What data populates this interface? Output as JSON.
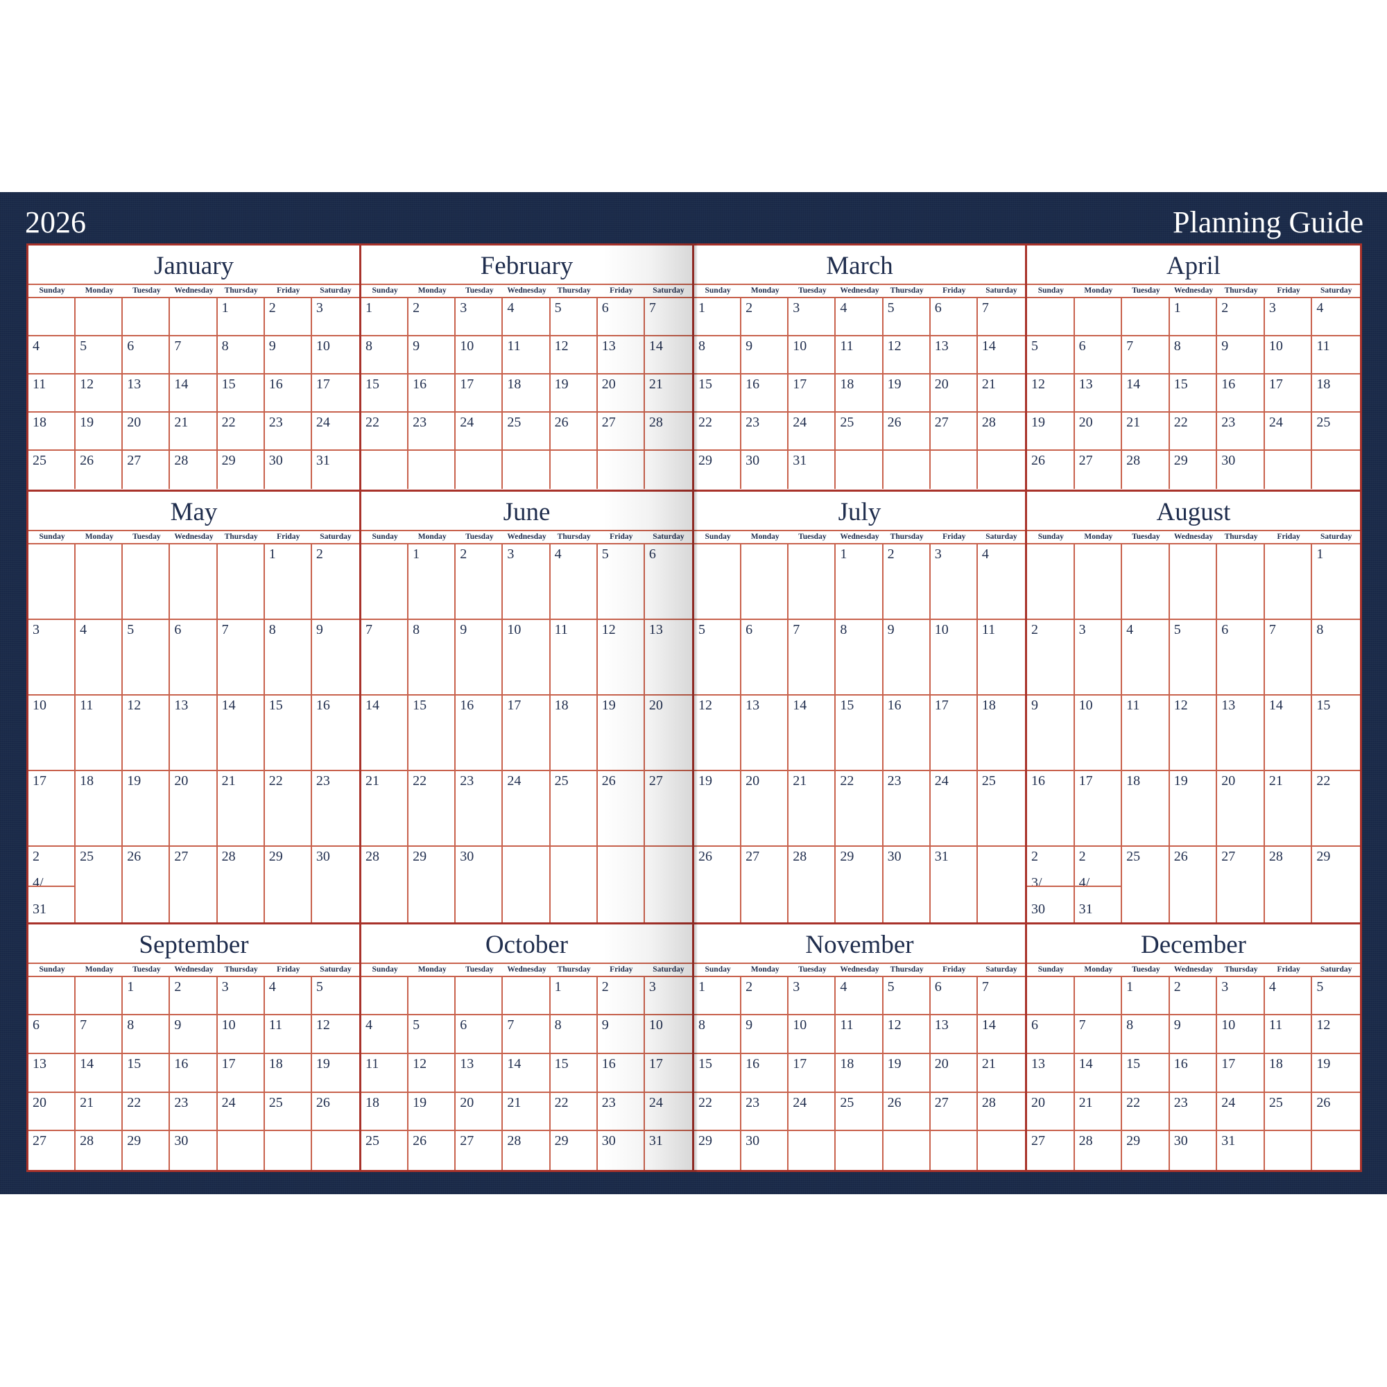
{
  "header": {
    "year": "2026",
    "title": "Planning Guide"
  },
  "colors": {
    "band": "#1b2b4a",
    "line": "#c8614c",
    "border": "#a8322a",
    "text": "#1f2d4d"
  },
  "weekdays": [
    "Sunday",
    "Monday",
    "Tuesday",
    "Wednesday",
    "Thursday",
    "Friday",
    "Saturday"
  ],
  "months": [
    {
      "name": "January",
      "weeks": [
        [
          "",
          "",
          "",
          "",
          "1",
          "2",
          "3"
        ],
        [
          "4",
          "5",
          "6",
          "7",
          "8",
          "9",
          "10"
        ],
        [
          "11",
          "12",
          "13",
          "14",
          "15",
          "16",
          "17"
        ],
        [
          "18",
          "19",
          "20",
          "21",
          "22",
          "23",
          "24"
        ],
        [
          "25",
          "26",
          "27",
          "28",
          "29",
          "30",
          "31"
        ]
      ]
    },
    {
      "name": "February",
      "weeks": [
        [
          "1",
          "2",
          "3",
          "4",
          "5",
          "6",
          "7"
        ],
        [
          "8",
          "9",
          "10",
          "11",
          "12",
          "13",
          "14"
        ],
        [
          "15",
          "16",
          "17",
          "18",
          "19",
          "20",
          "21"
        ],
        [
          "22",
          "23",
          "24",
          "25",
          "26",
          "27",
          "28"
        ],
        [
          "",
          "",
          "",
          "",
          "",
          "",
          ""
        ]
      ]
    },
    {
      "name": "March",
      "weeks": [
        [
          "1",
          "2",
          "3",
          "4",
          "5",
          "6",
          "7"
        ],
        [
          "8",
          "9",
          "10",
          "11",
          "12",
          "13",
          "14"
        ],
        [
          "15",
          "16",
          "17",
          "18",
          "19",
          "20",
          "21"
        ],
        [
          "22",
          "23",
          "24",
          "25",
          "26",
          "27",
          "28"
        ],
        [
          "29",
          "30",
          "31",
          "",
          "",
          "",
          ""
        ]
      ]
    },
    {
      "name": "April",
      "weeks": [
        [
          "",
          "",
          "",
          "1",
          "2",
          "3",
          "4"
        ],
        [
          "5",
          "6",
          "7",
          "8",
          "9",
          "10",
          "11"
        ],
        [
          "12",
          "13",
          "14",
          "15",
          "16",
          "17",
          "18"
        ],
        [
          "19",
          "20",
          "21",
          "22",
          "23",
          "24",
          "25"
        ],
        [
          "26",
          "27",
          "28",
          "29",
          "30",
          "",
          ""
        ]
      ]
    },
    {
      "name": "May",
      "weeks": [
        [
          "",
          "",
          "",
          "",
          "",
          "1",
          "2"
        ],
        [
          "3",
          "4",
          "5",
          "6",
          "7",
          "8",
          "9"
        ],
        [
          "10",
          "11",
          "12",
          "13",
          "14",
          "15",
          "16"
        ],
        [
          "17",
          "18",
          "19",
          "20",
          "21",
          "22",
          "23"
        ],
        [
          "24/31",
          "25",
          "26",
          "27",
          "28",
          "29",
          "30"
        ]
      ]
    },
    {
      "name": "June",
      "weeks": [
        [
          "",
          "1",
          "2",
          "3",
          "4",
          "5",
          "6"
        ],
        [
          "7",
          "8",
          "9",
          "10",
          "11",
          "12",
          "13"
        ],
        [
          "14",
          "15",
          "16",
          "17",
          "18",
          "19",
          "20"
        ],
        [
          "21",
          "22",
          "23",
          "24",
          "25",
          "26",
          "27"
        ],
        [
          "28",
          "29",
          "30",
          "",
          "",
          "",
          ""
        ]
      ]
    },
    {
      "name": "July",
      "weeks": [
        [
          "",
          "",
          "",
          "1",
          "2",
          "3",
          "4"
        ],
        [
          "5",
          "6",
          "7",
          "8",
          "9",
          "10",
          "11"
        ],
        [
          "12",
          "13",
          "14",
          "15",
          "16",
          "17",
          "18"
        ],
        [
          "19",
          "20",
          "21",
          "22",
          "23",
          "24",
          "25"
        ],
        [
          "26",
          "27",
          "28",
          "29",
          "30",
          "31",
          ""
        ]
      ]
    },
    {
      "name": "August",
      "weeks": [
        [
          "",
          "",
          "",
          "",
          "",
          "",
          "1"
        ],
        [
          "2",
          "3",
          "4",
          "5",
          "6",
          "7",
          "8"
        ],
        [
          "9",
          "10",
          "11",
          "12",
          "13",
          "14",
          "15"
        ],
        [
          "16",
          "17",
          "18",
          "19",
          "20",
          "21",
          "22"
        ],
        [
          "23/30",
          "24/31",
          "25",
          "26",
          "27",
          "28",
          "29"
        ]
      ]
    },
    {
      "name": "September",
      "weeks": [
        [
          "",
          "",
          "1",
          "2",
          "3",
          "4",
          "5"
        ],
        [
          "6",
          "7",
          "8",
          "9",
          "10",
          "11",
          "12"
        ],
        [
          "13",
          "14",
          "15",
          "16",
          "17",
          "18",
          "19"
        ],
        [
          "20",
          "21",
          "22",
          "23",
          "24",
          "25",
          "26"
        ],
        [
          "27",
          "28",
          "29",
          "30",
          "",
          "",
          ""
        ]
      ]
    },
    {
      "name": "October",
      "weeks": [
        [
          "",
          "",
          "",
          "",
          "1",
          "2",
          "3"
        ],
        [
          "4",
          "5",
          "6",
          "7",
          "8",
          "9",
          "10"
        ],
        [
          "11",
          "12",
          "13",
          "14",
          "15",
          "16",
          "17"
        ],
        [
          "18",
          "19",
          "20",
          "21",
          "22",
          "23",
          "24"
        ],
        [
          "25",
          "26",
          "27",
          "28",
          "29",
          "30",
          "31"
        ]
      ]
    },
    {
      "name": "November",
      "weeks": [
        [
          "1",
          "2",
          "3",
          "4",
          "5",
          "6",
          "7"
        ],
        [
          "8",
          "9",
          "10",
          "11",
          "12",
          "13",
          "14"
        ],
        [
          "15",
          "16",
          "17",
          "18",
          "19",
          "20",
          "21"
        ],
        [
          "22",
          "23",
          "24",
          "25",
          "26",
          "27",
          "28"
        ],
        [
          "29",
          "30",
          "",
          "",
          "",
          "",
          ""
        ]
      ]
    },
    {
      "name": "December",
      "weeks": [
        [
          "",
          "",
          "1",
          "2",
          "3",
          "4",
          "5"
        ],
        [
          "6",
          "7",
          "8",
          "9",
          "10",
          "11",
          "12"
        ],
        [
          "13",
          "14",
          "15",
          "16",
          "17",
          "18",
          "19"
        ],
        [
          "20",
          "21",
          "22",
          "23",
          "24",
          "25",
          "26"
        ],
        [
          "27",
          "28",
          "29",
          "30",
          "31",
          "",
          ""
        ]
      ]
    }
  ]
}
